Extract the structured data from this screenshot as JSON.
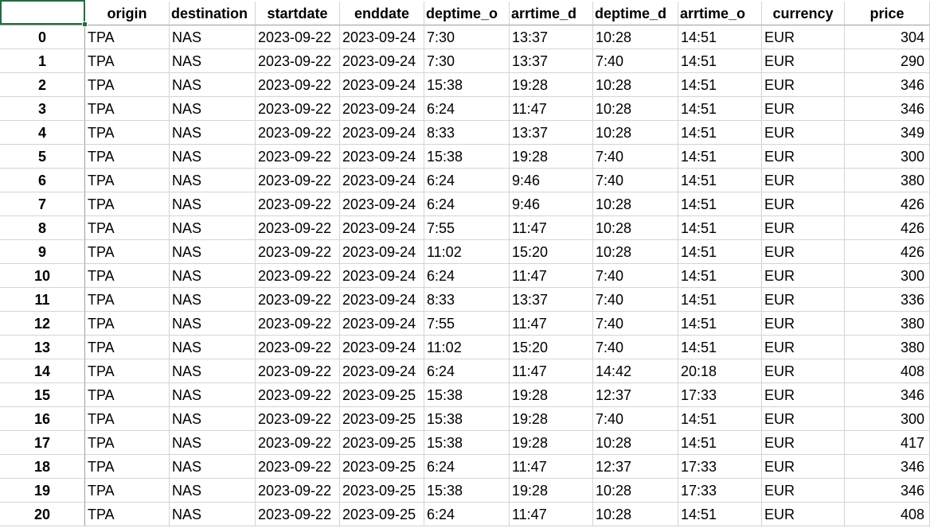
{
  "columns": [
    "",
    "origin",
    "destination",
    "startdate",
    "enddate",
    "deptime_o",
    "arrtime_d",
    "deptime_d",
    "arrtime_o",
    "currency",
    "price"
  ],
  "rows": [
    {
      "index": "0",
      "origin": "TPA",
      "destination": "NAS",
      "startdate": "2023-09-22",
      "enddate": "2023-09-24",
      "deptime_o": "7:30",
      "arrtime_d": "13:37",
      "deptime_d": "10:28",
      "arrtime_o": "14:51",
      "currency": "EUR",
      "price": "304"
    },
    {
      "index": "1",
      "origin": "TPA",
      "destination": "NAS",
      "startdate": "2023-09-22",
      "enddate": "2023-09-24",
      "deptime_o": "7:30",
      "arrtime_d": "13:37",
      "deptime_d": "7:40",
      "arrtime_o": "14:51",
      "currency": "EUR",
      "price": "290"
    },
    {
      "index": "2",
      "origin": "TPA",
      "destination": "NAS",
      "startdate": "2023-09-22",
      "enddate": "2023-09-24",
      "deptime_o": "15:38",
      "arrtime_d": "19:28",
      "deptime_d": "10:28",
      "arrtime_o": "14:51",
      "currency": "EUR",
      "price": "346"
    },
    {
      "index": "3",
      "origin": "TPA",
      "destination": "NAS",
      "startdate": "2023-09-22",
      "enddate": "2023-09-24",
      "deptime_o": "6:24",
      "arrtime_d": "11:47",
      "deptime_d": "10:28",
      "arrtime_o": "14:51",
      "currency": "EUR",
      "price": "346"
    },
    {
      "index": "4",
      "origin": "TPA",
      "destination": "NAS",
      "startdate": "2023-09-22",
      "enddate": "2023-09-24",
      "deptime_o": "8:33",
      "arrtime_d": "13:37",
      "deptime_d": "10:28",
      "arrtime_o": "14:51",
      "currency": "EUR",
      "price": "349"
    },
    {
      "index": "5",
      "origin": "TPA",
      "destination": "NAS",
      "startdate": "2023-09-22",
      "enddate": "2023-09-24",
      "deptime_o": "15:38",
      "arrtime_d": "19:28",
      "deptime_d": "7:40",
      "arrtime_o": "14:51",
      "currency": "EUR",
      "price": "300"
    },
    {
      "index": "6",
      "origin": "TPA",
      "destination": "NAS",
      "startdate": "2023-09-22",
      "enddate": "2023-09-24",
      "deptime_o": "6:24",
      "arrtime_d": "9:46",
      "deptime_d": "7:40",
      "arrtime_o": "14:51",
      "currency": "EUR",
      "price": "380"
    },
    {
      "index": "7",
      "origin": "TPA",
      "destination": "NAS",
      "startdate": "2023-09-22",
      "enddate": "2023-09-24",
      "deptime_o": "6:24",
      "arrtime_d": "9:46",
      "deptime_d": "10:28",
      "arrtime_o": "14:51",
      "currency": "EUR",
      "price": "426"
    },
    {
      "index": "8",
      "origin": "TPA",
      "destination": "NAS",
      "startdate": "2023-09-22",
      "enddate": "2023-09-24",
      "deptime_o": "7:55",
      "arrtime_d": "11:47",
      "deptime_d": "10:28",
      "arrtime_o": "14:51",
      "currency": "EUR",
      "price": "426"
    },
    {
      "index": "9",
      "origin": "TPA",
      "destination": "NAS",
      "startdate": "2023-09-22",
      "enddate": "2023-09-24",
      "deptime_o": "11:02",
      "arrtime_d": "15:20",
      "deptime_d": "10:28",
      "arrtime_o": "14:51",
      "currency": "EUR",
      "price": "426"
    },
    {
      "index": "10",
      "origin": "TPA",
      "destination": "NAS",
      "startdate": "2023-09-22",
      "enddate": "2023-09-24",
      "deptime_o": "6:24",
      "arrtime_d": "11:47",
      "deptime_d": "7:40",
      "arrtime_o": "14:51",
      "currency": "EUR",
      "price": "300"
    },
    {
      "index": "11",
      "origin": "TPA",
      "destination": "NAS",
      "startdate": "2023-09-22",
      "enddate": "2023-09-24",
      "deptime_o": "8:33",
      "arrtime_d": "13:37",
      "deptime_d": "7:40",
      "arrtime_o": "14:51",
      "currency": "EUR",
      "price": "336"
    },
    {
      "index": "12",
      "origin": "TPA",
      "destination": "NAS",
      "startdate": "2023-09-22",
      "enddate": "2023-09-24",
      "deptime_o": "7:55",
      "arrtime_d": "11:47",
      "deptime_d": "7:40",
      "arrtime_o": "14:51",
      "currency": "EUR",
      "price": "380"
    },
    {
      "index": "13",
      "origin": "TPA",
      "destination": "NAS",
      "startdate": "2023-09-22",
      "enddate": "2023-09-24",
      "deptime_o": "11:02",
      "arrtime_d": "15:20",
      "deptime_d": "7:40",
      "arrtime_o": "14:51",
      "currency": "EUR",
      "price": "380"
    },
    {
      "index": "14",
      "origin": "TPA",
      "destination": "NAS",
      "startdate": "2023-09-22",
      "enddate": "2023-09-24",
      "deptime_o": "6:24",
      "arrtime_d": "11:47",
      "deptime_d": "14:42",
      "arrtime_o": "20:18",
      "currency": "EUR",
      "price": "408"
    },
    {
      "index": "15",
      "origin": "TPA",
      "destination": "NAS",
      "startdate": "2023-09-22",
      "enddate": "2023-09-25",
      "deptime_o": "15:38",
      "arrtime_d": "19:28",
      "deptime_d": "12:37",
      "arrtime_o": "17:33",
      "currency": "EUR",
      "price": "346"
    },
    {
      "index": "16",
      "origin": "TPA",
      "destination": "NAS",
      "startdate": "2023-09-22",
      "enddate": "2023-09-25",
      "deptime_o": "15:38",
      "arrtime_d": "19:28",
      "deptime_d": "7:40",
      "arrtime_o": "14:51",
      "currency": "EUR",
      "price": "300"
    },
    {
      "index": "17",
      "origin": "TPA",
      "destination": "NAS",
      "startdate": "2023-09-22",
      "enddate": "2023-09-25",
      "deptime_o": "15:38",
      "arrtime_d": "19:28",
      "deptime_d": "10:28",
      "arrtime_o": "14:51",
      "currency": "EUR",
      "price": "417"
    },
    {
      "index": "18",
      "origin": "TPA",
      "destination": "NAS",
      "startdate": "2023-09-22",
      "enddate": "2023-09-25",
      "deptime_o": "6:24",
      "arrtime_d": "11:47",
      "deptime_d": "12:37",
      "arrtime_o": "17:33",
      "currency": "EUR",
      "price": "346"
    },
    {
      "index": "19",
      "origin": "TPA",
      "destination": "NAS",
      "startdate": "2023-09-22",
      "enddate": "2023-09-25",
      "deptime_o": "15:38",
      "arrtime_d": "19:28",
      "deptime_d": "10:28",
      "arrtime_o": "17:33",
      "currency": "EUR",
      "price": "346"
    },
    {
      "index": "20",
      "origin": "TPA",
      "destination": "NAS",
      "startdate": "2023-09-22",
      "enddate": "2023-09-25",
      "deptime_o": "6:24",
      "arrtime_d": "11:47",
      "deptime_d": "10:28",
      "arrtime_o": "14:51",
      "currency": "EUR",
      "price": "408"
    }
  ],
  "colors": {
    "selection": "#1d6f42",
    "gridline": "#d4d4d4"
  }
}
